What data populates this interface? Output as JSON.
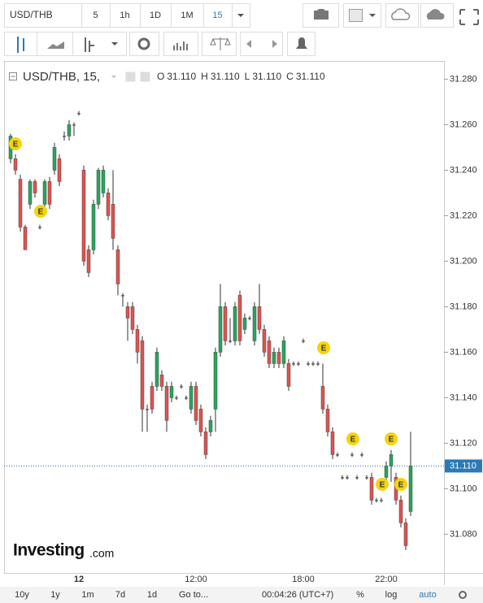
{
  "toolbar": {
    "symbol": "USD/THB",
    "intervals": [
      "5",
      "1h",
      "1D",
      "1M",
      "15"
    ]
  },
  "legend": {
    "title": "USD/THB, 15,",
    "fields": [
      {
        "key": "O",
        "value": "31.110"
      },
      {
        "key": "H",
        "value": "31.110"
      },
      {
        "key": "L",
        "value": "31.110"
      },
      {
        "key": "C",
        "value": "31.110"
      }
    ]
  },
  "logo": {
    "name": "Investing",
    "suffix": ".com"
  },
  "bottom_bar": {
    "ranges": [
      "10y",
      "1y",
      "1m",
      "7d",
      "1d"
    ],
    "goto": "Go to...",
    "clock": "00:04:26 (UTC+7)",
    "options": [
      "%",
      "log",
      "auto"
    ]
  },
  "events": [
    "E",
    "E",
    "E",
    "E",
    "E",
    "E",
    "E"
  ],
  "chart_data": {
    "type": "candlestick",
    "categories": [
      null,
      null,
      null,
      null,
      null,
      null,
      null,
      null,
      null,
      null,
      null,
      null,
      null,
      null,
      "12",
      null,
      null,
      null,
      null,
      null,
      null,
      null,
      null,
      null,
      null,
      null,
      null,
      null,
      null,
      null,
      null,
      null,
      null,
      null,
      null,
      null,
      null,
      null,
      "12:00",
      null,
      null,
      null,
      null,
      null,
      null,
      null,
      null,
      null,
      null,
      null,
      null,
      null,
      null,
      null,
      null,
      null,
      null,
      null,
      null,
      null,
      "18:00",
      null,
      null,
      null,
      null,
      null,
      null,
      null,
      null,
      null,
      null,
      null,
      null,
      null,
      null,
      null,
      null,
      "22:00",
      null,
      null,
      null,
      null,
      null
    ],
    "open": [
      31.245,
      31.245,
      31.236,
      31.215,
      31.225,
      31.235,
      31.215,
      31.225,
      31.235,
      31.24,
      31.245,
      31.255,
      31.255,
      31.26,
      31.265,
      31.24,
      31.205,
      31.205,
      31.225,
      31.23,
      31.23,
      31.225,
      31.205,
      31.185,
      31.18,
      31.18,
      31.17,
      31.165,
      31.135,
      31.145,
      31.145,
      31.15,
      31.145,
      31.14,
      31.14,
      31.145,
      31.14,
      31.135,
      31.145,
      31.135,
      31.125,
      31.125,
      31.135,
      31.16,
      31.18,
      31.165,
      31.165,
      31.185,
      31.17,
      31.175,
      31.165,
      31.18,
      31.17,
      31.165,
      31.155,
      31.16,
      31.155,
      31.155,
      31.155,
      31.155,
      31.165,
      31.155,
      31.155,
      31.155,
      31.145,
      31.135,
      31.125,
      31.115,
      31.105,
      31.105,
      31.115,
      31.105,
      31.115,
      31.105,
      31.105,
      31.095,
      31.095,
      31.105,
      31.11,
      31.105,
      31.095,
      31.085,
      31.09
    ],
    "high": [
      31.256,
      31.247,
      31.238,
      31.216,
      31.236,
      31.236,
      31.216,
      31.236,
      31.237,
      31.252,
      31.247,
      31.257,
      31.262,
      31.261,
      31.266,
      31.242,
      31.207,
      31.227,
      31.241,
      31.242,
      31.232,
      31.24,
      31.207,
      31.186,
      31.182,
      31.182,
      31.172,
      31.167,
      31.137,
      31.147,
      31.162,
      31.152,
      31.147,
      31.147,
      31.141,
      31.146,
      31.141,
      31.147,
      31.147,
      31.137,
      31.127,
      31.132,
      31.162,
      31.19,
      31.182,
      31.175,
      31.182,
      31.187,
      31.177,
      31.176,
      31.182,
      31.19,
      31.172,
      31.167,
      31.162,
      31.162,
      31.167,
      31.157,
      31.156,
      31.156,
      31.166,
      31.156,
      31.156,
      31.156,
      31.155,
      31.137,
      31.127,
      31.116,
      31.106,
      31.106,
      31.116,
      31.106,
      31.116,
      31.106,
      31.107,
      31.096,
      31.096,
      31.112,
      31.117,
      31.107,
      31.097,
      31.087,
      31.125
    ],
    "low": [
      31.243,
      31.238,
      31.213,
      31.205,
      31.223,
      31.228,
      31.214,
      31.223,
      31.223,
      31.238,
      31.233,
      31.253,
      31.253,
      31.255,
      31.264,
      31.198,
      31.193,
      31.203,
      31.223,
      31.228,
      31.218,
      31.205,
      31.185,
      31.18,
      31.165,
      31.168,
      31.155,
      31.125,
      31.125,
      31.133,
      31.143,
      31.143,
      31.125,
      31.138,
      31.139,
      31.144,
      31.139,
      31.133,
      31.128,
      31.123,
      31.113,
      31.123,
      31.125,
      31.158,
      31.163,
      31.164,
      31.163,
      31.163,
      31.168,
      31.174,
      31.163,
      31.168,
      31.158,
      31.153,
      31.153,
      31.153,
      31.153,
      31.143,
      31.154,
      31.154,
      31.164,
      31.154,
      31.154,
      31.154,
      31.133,
      31.123,
      31.113,
      31.114,
      31.104,
      31.104,
      31.114,
      31.104,
      31.114,
      31.104,
      31.093,
      31.094,
      31.094,
      31.103,
      31.103,
      31.093,
      31.083,
      31.073,
      31.088
    ],
    "close": [
      31.255,
      31.24,
      31.215,
      31.205,
      31.235,
      31.23,
      31.215,
      31.235,
      31.225,
      31.25,
      31.235,
      31.255,
      31.26,
      31.26,
      31.265,
      31.2,
      31.195,
      31.225,
      31.24,
      31.24,
      31.22,
      31.21,
      31.19,
      31.185,
      31.175,
      31.17,
      31.16,
      31.135,
      31.135,
      31.135,
      31.16,
      31.145,
      31.13,
      31.145,
      31.14,
      31.145,
      31.14,
      31.145,
      31.13,
      31.125,
      31.115,
      31.13,
      31.16,
      31.18,
      31.165,
      31.165,
      31.18,
      31.165,
      31.175,
      31.175,
      31.18,
      31.17,
      31.16,
      31.155,
      31.16,
      31.155,
      31.165,
      31.145,
      31.155,
      31.155,
      31.165,
      31.155,
      31.155,
      31.155,
      31.135,
      31.125,
      31.115,
      31.115,
      31.105,
      31.105,
      31.115,
      31.105,
      31.115,
      31.105,
      31.095,
      31.095,
      31.095,
      31.11,
      31.115,
      31.095,
      31.085,
      31.075,
      31.11
    ],
    "up_color": "#26a65b",
    "down_color": "#e0524f",
    "ylim": [
      31.063,
      31.288
    ],
    "yticks": [
      {
        "value": 31.08,
        "label": "31.080"
      },
      {
        "value": 31.1,
        "label": "31.100"
      },
      {
        "value": 31.12,
        "label": "31.120"
      },
      {
        "value": 31.14,
        "label": "31.140"
      },
      {
        "value": 31.16,
        "label": "31.160"
      },
      {
        "value": 31.18,
        "label": "31.180"
      },
      {
        "value": 31.2,
        "label": "31.200"
      },
      {
        "value": 31.22,
        "label": "31.220"
      },
      {
        "value": 31.24,
        "label": "31.240"
      },
      {
        "value": 31.26,
        "label": "31.260"
      },
      {
        "value": 31.28,
        "label": "31.280"
      }
    ],
    "last_price": {
      "value": 31.11,
      "label": "31.110"
    }
  }
}
